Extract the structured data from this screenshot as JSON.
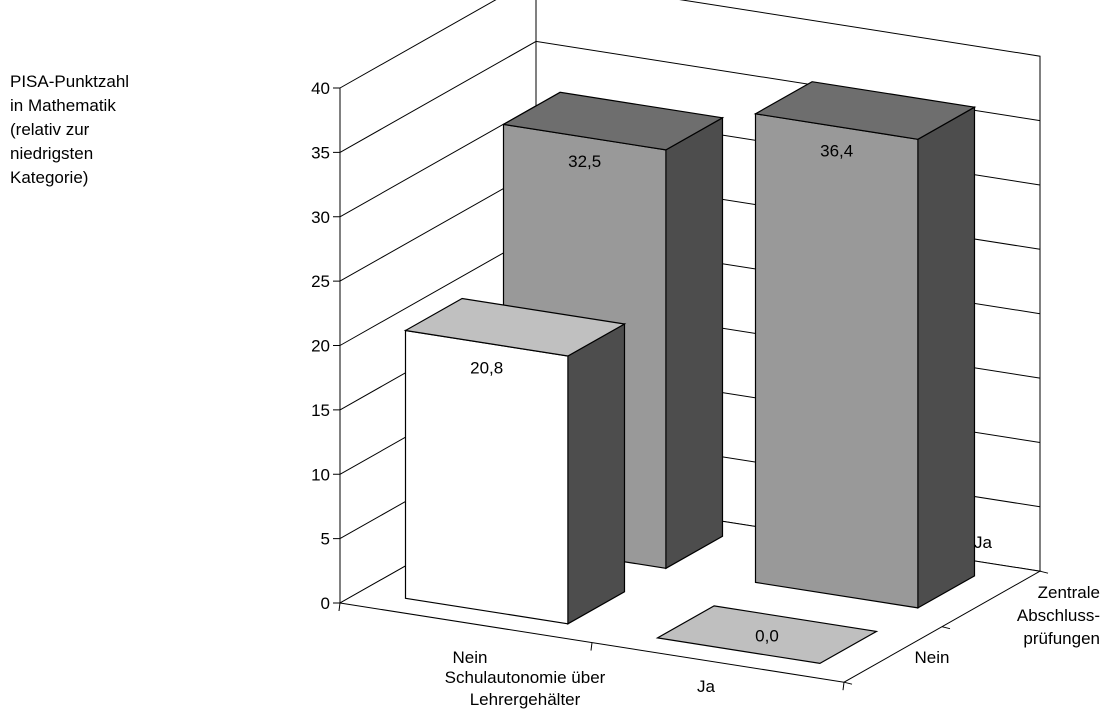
{
  "chart_data": {
    "type": "bar",
    "subtype": "3d-grid",
    "ylabel_lines": [
      "PISA-Punktzahl",
      "in Mathematik",
      "(relativ zur",
      "niedrigsten",
      "Kategorie)"
    ],
    "xlabel_lines": [
      "Schulautonomie über",
      "Lehrergehälter"
    ],
    "zlabel_lines": [
      "Zentrale",
      "Abschluss-",
      "prüfungen"
    ],
    "x_categories": [
      "Nein",
      "Ja"
    ],
    "z_categories": [
      "Nein",
      "Ja"
    ],
    "ylim": [
      0,
      40
    ],
    "yticks": [
      0,
      5,
      10,
      15,
      20,
      25,
      30,
      35,
      40
    ],
    "grid": true,
    "bars": [
      {
        "x": "Nein",
        "z": "Nein",
        "value": 20.8,
        "label": "20,8",
        "face": "#ffffff"
      },
      {
        "x": "Nein",
        "z": "Ja",
        "value": 32.5,
        "label": "32,5",
        "face": "#999999"
      },
      {
        "x": "Ja",
        "z": "Nein",
        "value": 0.0,
        "label": "0,0",
        "face": "#bfbfbf"
      },
      {
        "x": "Ja",
        "z": "Ja",
        "value": 36.4,
        "label": "36,4",
        "face": "#999999"
      }
    ]
  }
}
